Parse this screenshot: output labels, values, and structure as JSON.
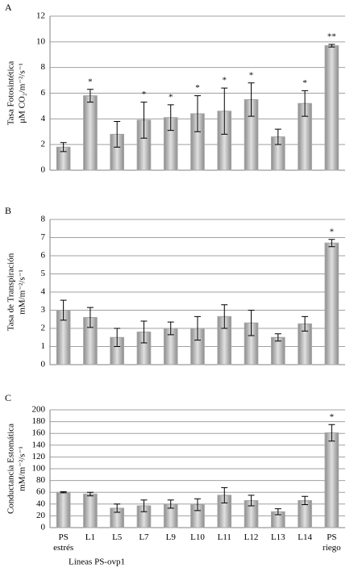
{
  "chart_data": [
    {
      "type": "bar",
      "panel_label": "A",
      "ylabel": [
        "Tasa Fotosintética",
        "μM CO₂/m⁻²/s⁻¹"
      ],
      "values": [
        1.8,
        5.8,
        2.8,
        3.9,
        4.1,
        4.4,
        4.6,
        5.5,
        2.6,
        5.2,
        9.7
      ],
      "errors": [
        0.35,
        0.5,
        1.0,
        1.4,
        1.0,
        1.4,
        1.8,
        1.3,
        0.6,
        1.0,
        0.1
      ],
      "significance": [
        null,
        "*",
        null,
        "*",
        "*",
        "*",
        "*",
        "*",
        null,
        "*",
        "**"
      ],
      "ylim": [
        0,
        12
      ],
      "yticks": [
        0,
        2,
        4,
        6,
        8,
        10,
        12
      ],
      "grid": true,
      "color": "#a6a6a6"
    },
    {
      "type": "bar",
      "panel_label": "B",
      "ylabel": [
        "Tasa de Transpiración",
        "mM/m⁻²/s⁻¹"
      ],
      "values": [
        3.0,
        2.6,
        1.5,
        1.8,
        2.0,
        2.0,
        2.65,
        2.3,
        1.5,
        2.25,
        6.7
      ],
      "errors": [
        0.55,
        0.55,
        0.5,
        0.6,
        0.35,
        0.65,
        0.65,
        0.7,
        0.2,
        0.4,
        0.2
      ],
      "significance": [
        null,
        null,
        null,
        null,
        null,
        null,
        null,
        null,
        null,
        null,
        "*"
      ],
      "ylim": [
        0,
        8
      ],
      "yticks": [
        0,
        1,
        2,
        3,
        4,
        5,
        6,
        7,
        8
      ],
      "grid": true,
      "color": "#a6a6a6"
    },
    {
      "type": "bar",
      "panel_label": "C",
      "ylabel": [
        "Conductancia Estomática",
        "mM/m⁻²/s⁻¹"
      ],
      "xlabel": "Líneas PS-ovp1",
      "categories": [
        "PS estrés",
        "L1",
        "L5",
        "L7",
        "L9",
        "L10",
        "L11",
        "L12",
        "L13",
        "L14",
        "PS riego"
      ],
      "values": [
        60,
        57,
        33,
        37,
        40,
        39,
        55,
        46,
        27,
        46,
        161
      ],
      "errors": [
        1,
        3,
        7,
        10,
        7,
        10,
        13,
        9,
        5,
        7,
        14
      ],
      "significance": [
        null,
        null,
        null,
        null,
        null,
        null,
        null,
        null,
        null,
        null,
        "*"
      ],
      "ylim": [
        0,
        200
      ],
      "yticks": [
        0,
        20,
        40,
        60,
        80,
        100,
        120,
        140,
        160,
        180,
        200
      ],
      "grid": true,
      "color": "#a6a6a6"
    }
  ]
}
